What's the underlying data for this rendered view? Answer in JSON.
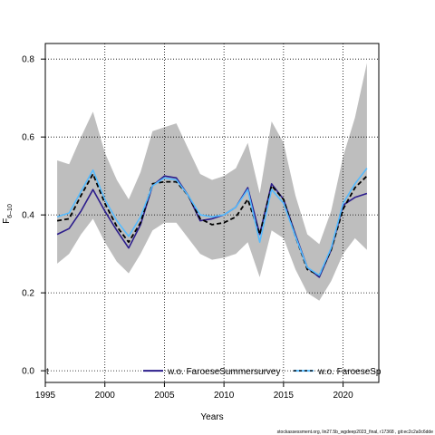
{
  "chart_data": {
    "type": "line",
    "title": "",
    "xlabel": "Years",
    "ylabel_main": "F",
    "ylabel_sub": "6–10",
    "xlim": [
      1995,
      2023
    ],
    "ylim": [
      -0.03,
      0.84
    ],
    "x_ticks": [
      1995,
      2000,
      2005,
      2010,
      2015,
      2020
    ],
    "y_ticks": [
      0.0,
      0.2,
      0.4,
      0.6,
      0.8
    ],
    "y_tick_labels": [
      "0.0",
      "0.2",
      "0.4",
      "0.6",
      "0.8"
    ],
    "grid": true,
    "x": [
      1996,
      1997,
      1998,
      1999,
      2000,
      2001,
      2002,
      2003,
      2004,
      2005,
      2006,
      2007,
      2008,
      2009,
      2010,
      2011,
      2012,
      2013,
      2014,
      2015,
      2016,
      2017,
      2018,
      2019,
      2020,
      2021,
      2022
    ],
    "band": {
      "color": "#bebebe",
      "lower": [
        0.275,
        0.3,
        0.35,
        0.39,
        0.33,
        0.28,
        0.25,
        0.3,
        0.36,
        0.38,
        0.38,
        0.34,
        0.3,
        0.285,
        0.29,
        0.3,
        0.33,
        0.24,
        0.36,
        0.34,
        0.26,
        0.2,
        0.18,
        0.23,
        0.3,
        0.34,
        0.31
      ],
      "upper": [
        0.54,
        0.53,
        0.6,
        0.665,
        0.56,
        0.49,
        0.44,
        0.51,
        0.615,
        0.625,
        0.635,
        0.57,
        0.505,
        0.49,
        0.5,
        0.52,
        0.585,
        0.455,
        0.64,
        0.585,
        0.45,
        0.35,
        0.325,
        0.41,
        0.55,
        0.65,
        0.79
      ]
    },
    "series": [
      {
        "name": "w.o. FaroeseSummersurvey",
        "color": "#2c1d8c",
        "style": "solid",
        "values": [
          0.35,
          0.365,
          0.41,
          0.465,
          0.41,
          0.36,
          0.315,
          0.375,
          0.475,
          0.5,
          0.495,
          0.45,
          0.385,
          0.39,
          0.4,
          0.42,
          0.47,
          0.35,
          0.48,
          0.44,
          0.35,
          0.265,
          0.24,
          0.31,
          0.425,
          0.445,
          0.455
        ]
      },
      {
        "name": "",
        "color": "#000000",
        "style": "dashed",
        "values": [
          0.385,
          0.39,
          0.45,
          0.505,
          0.43,
          0.37,
          0.33,
          0.38,
          0.48,
          0.485,
          0.485,
          0.45,
          0.39,
          0.375,
          0.38,
          0.395,
          0.44,
          0.35,
          0.475,
          0.44,
          0.345,
          0.26,
          0.245,
          0.31,
          0.415,
          0.47,
          0.5
        ]
      },
      {
        "name": "w.o. FaroeseSp",
        "color": "#55bbff",
        "style": "solid",
        "values": [
          0.395,
          0.405,
          0.46,
          0.515,
          0.44,
          0.385,
          0.345,
          0.395,
          0.475,
          0.495,
          0.49,
          0.45,
          0.4,
          0.395,
          0.4,
          0.42,
          0.465,
          0.33,
          0.465,
          0.43,
          0.345,
          0.265,
          0.245,
          0.315,
          0.43,
          0.48,
          0.52
        ]
      }
    ],
    "legend": {
      "placement": "bottom",
      "left_text": "t",
      "items": [
        {
          "label": "w.o. FaroeseSummersurvey",
          "color": "#2c1d8c",
          "style": "solid"
        },
        {
          "label": "w.o. FaroeseSp",
          "color": "#55bbff",
          "style": "solid",
          "overlay": "#000000"
        }
      ]
    },
    "footer": "stockassessment.org, lin27.5b_wgdeep2023_final, r17368 , git:ec2c2a0c6dde"
  }
}
